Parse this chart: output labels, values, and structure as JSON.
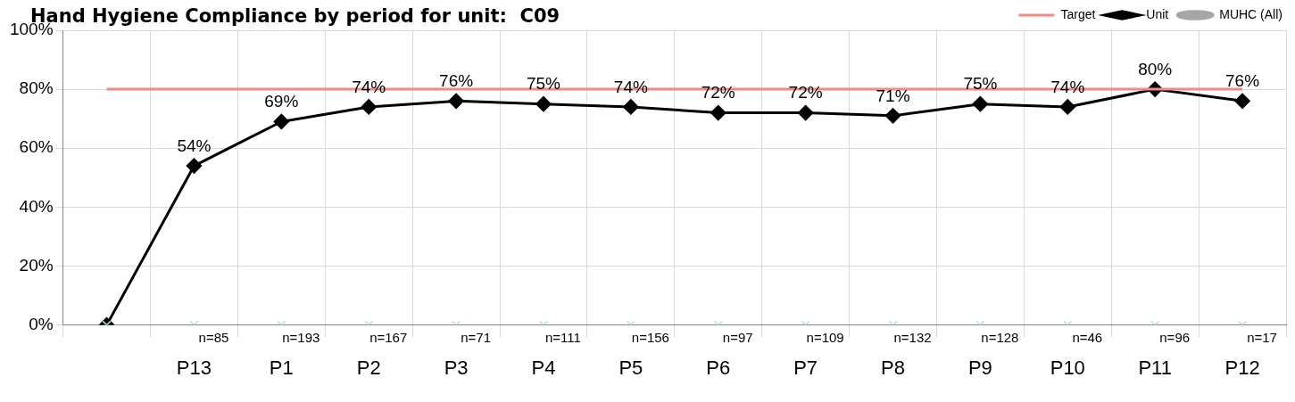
{
  "chart_data": {
    "type": "line",
    "title": "Hand Hygiene Compliance by period for unit:  C09",
    "categories": [
      null,
      "P13",
      "P1",
      "P2",
      "P3",
      "P4",
      "P5",
      "P6",
      "P7",
      "P8",
      "P9",
      "P10",
      "P11",
      "P12"
    ],
    "series": [
      {
        "name": "MUHC (All)",
        "color": "#a6a6a6",
        "marker": "circle",
        "values": [
          null,
          null,
          null,
          null,
          null,
          null,
          null,
          null,
          null,
          null,
          null,
          null,
          null,
          null
        ]
      },
      {
        "name": "Unit",
        "color": "#000000",
        "marker": "diamond",
        "values": [
          0,
          54,
          69,
          74,
          76,
          75,
          74,
          72,
          72,
          71,
          75,
          74,
          80,
          76
        ],
        "value_labels": [
          null,
          "54%",
          "69%",
          "74%",
          "76%",
          "75%",
          "74%",
          "72%",
          "72%",
          "71%",
          "75%",
          "74%",
          "80%",
          "76%"
        ]
      },
      {
        "name": "Target",
        "color": "#f08c84",
        "marker": "none",
        "values": [
          80,
          80,
          80,
          80,
          80,
          80,
          80,
          80,
          80,
          80,
          80,
          80,
          80,
          80
        ]
      },
      {
        "type": "scatter",
        "color": "#b8e6dc",
        "marker": "cross",
        "values": [
          0,
          0,
          0,
          0,
          0,
          0,
          0,
          0,
          0,
          0,
          0,
          0,
          0,
          0
        ]
      }
    ],
    "ylim": [
      0,
      100
    ],
    "yticks": [
      {
        "value": 0,
        "label": "0%"
      },
      {
        "value": 20,
        "label": "20%"
      },
      {
        "value": 40,
        "label": "40%"
      },
      {
        "value": 60,
        "label": "60%"
      },
      {
        "value": 80,
        "label": "80%"
      },
      {
        "value": 100,
        "label": "100%"
      }
    ],
    "grid": true,
    "legend": "top right",
    "annotations": [
      {
        "text": "n=85",
        "x": "P13",
        "y": 0
      },
      {
        "text": "n=193",
        "x": "P1",
        "y": 0
      },
      {
        "text": "n=167",
        "x": "P2",
        "y": 0
      },
      {
        "text": "n=71",
        "x": "P3",
        "y": 0
      },
      {
        "text": "n=111",
        "x": "P4",
        "y": 0
      },
      {
        "text": "n=156",
        "x": "P5",
        "y": 0
      },
      {
        "text": "n=97",
        "x": "P6",
        "y": 0
      },
      {
        "text": "n=109",
        "x": "P7",
        "y": 0
      },
      {
        "text": "n=132",
        "x": "P8",
        "y": 0
      },
      {
        "text": "n=128",
        "x": "P9",
        "y": 0
      },
      {
        "text": "n=46",
        "x": "P10",
        "y": 0
      },
      {
        "text": "n=96",
        "x": "P11",
        "y": 0
      },
      {
        "text": "n=17",
        "x": "P12",
        "y": 0
      }
    ]
  }
}
